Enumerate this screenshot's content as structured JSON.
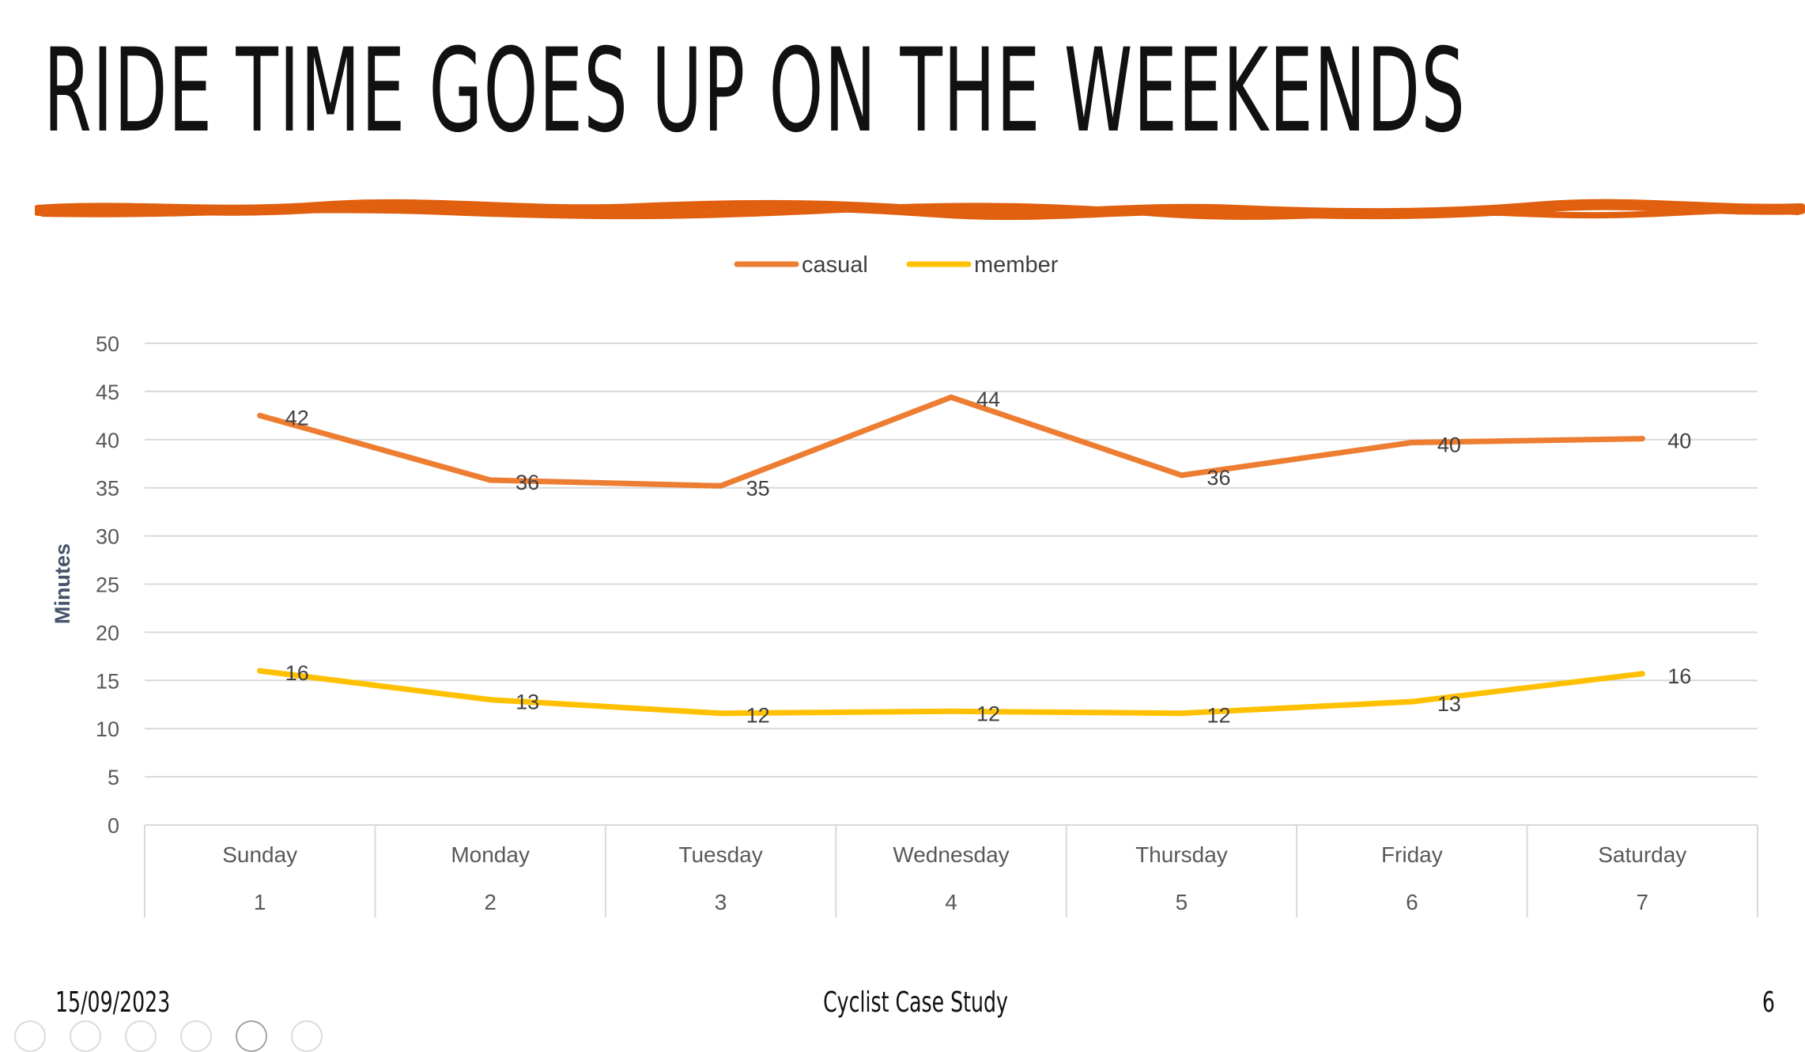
{
  "slide": {
    "title": "RIDE TIME GOES UP ON THE WEEKENDS",
    "accent_color": "#E06010"
  },
  "footer": {
    "date": "15/09/2023",
    "center_text": "Cyclist Case Study",
    "page_number": "6"
  },
  "chart_data": {
    "type": "line",
    "title": "",
    "xlabel": "",
    "ylabel": "Minutes",
    "ylim": [
      0,
      50
    ],
    "yticks": [
      0,
      5,
      10,
      15,
      20,
      25,
      30,
      35,
      40,
      45,
      50
    ],
    "categories": [
      "Sunday",
      "Monday",
      "Tuesday",
      "Wednesday",
      "Thursday",
      "Friday",
      "Saturday"
    ],
    "category_numbers": [
      "1",
      "2",
      "3",
      "4",
      "5",
      "6",
      "7"
    ],
    "grid": true,
    "legend_position": "top",
    "series": [
      {
        "name": "casual",
        "color": "#ED7D31",
        "values": [
          42.5,
          35.8,
          35.2,
          44.4,
          36.3,
          39.7,
          40.1
        ],
        "labels": [
          "42",
          "36",
          "35",
          "44",
          "36",
          "40",
          "40"
        ]
      },
      {
        "name": "member",
        "color": "#FFC000",
        "values": [
          16.0,
          13.0,
          11.6,
          11.8,
          11.6,
          12.8,
          15.7
        ],
        "labels": [
          "16",
          "13",
          "12",
          "12",
          "12",
          "13",
          "16"
        ]
      }
    ]
  }
}
